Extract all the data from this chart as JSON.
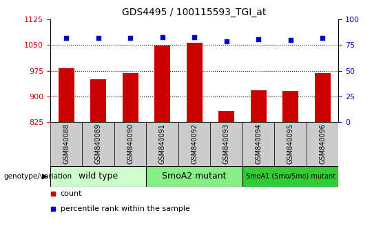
{
  "title": "GDS4495 / 100115593_TGI_at",
  "samples": [
    "GSM840088",
    "GSM840089",
    "GSM840090",
    "GSM840091",
    "GSM840092",
    "GSM840093",
    "GSM840094",
    "GSM840095",
    "GSM840096"
  ],
  "counts": [
    983,
    950,
    968,
    1048,
    1058,
    858,
    918,
    916,
    968
  ],
  "percentiles": [
    82,
    82,
    82,
    83,
    83,
    79,
    81,
    80,
    82
  ],
  "ylim_left": [
    825,
    1125
  ],
  "ylim_right": [
    0,
    100
  ],
  "yticks_left": [
    825,
    900,
    975,
    1050,
    1125
  ],
  "yticks_right": [
    0,
    25,
    50,
    75,
    100
  ],
  "groups": [
    {
      "label": "wild type",
      "start": 0,
      "end": 3,
      "color": "#ccffcc"
    },
    {
      "label": "SmoA2 mutant",
      "start": 3,
      "end": 6,
      "color": "#88ee88"
    },
    {
      "label": "SmoA1 (Smo/Smo) mutant",
      "start": 6,
      "end": 9,
      "color": "#33cc33"
    }
  ],
  "bar_color": "#cc0000",
  "dot_color": "#0000cc",
  "bar_width": 0.5,
  "left_tick_color": "#cc0000",
  "right_tick_color": "#0000cc",
  "cell_bg": "#cccccc",
  "legend_items": [
    {
      "label": "count",
      "color": "#cc0000"
    },
    {
      "label": "percentile rank within the sample",
      "color": "#0000cc"
    }
  ],
  "genotype_label": "genotype/variation"
}
